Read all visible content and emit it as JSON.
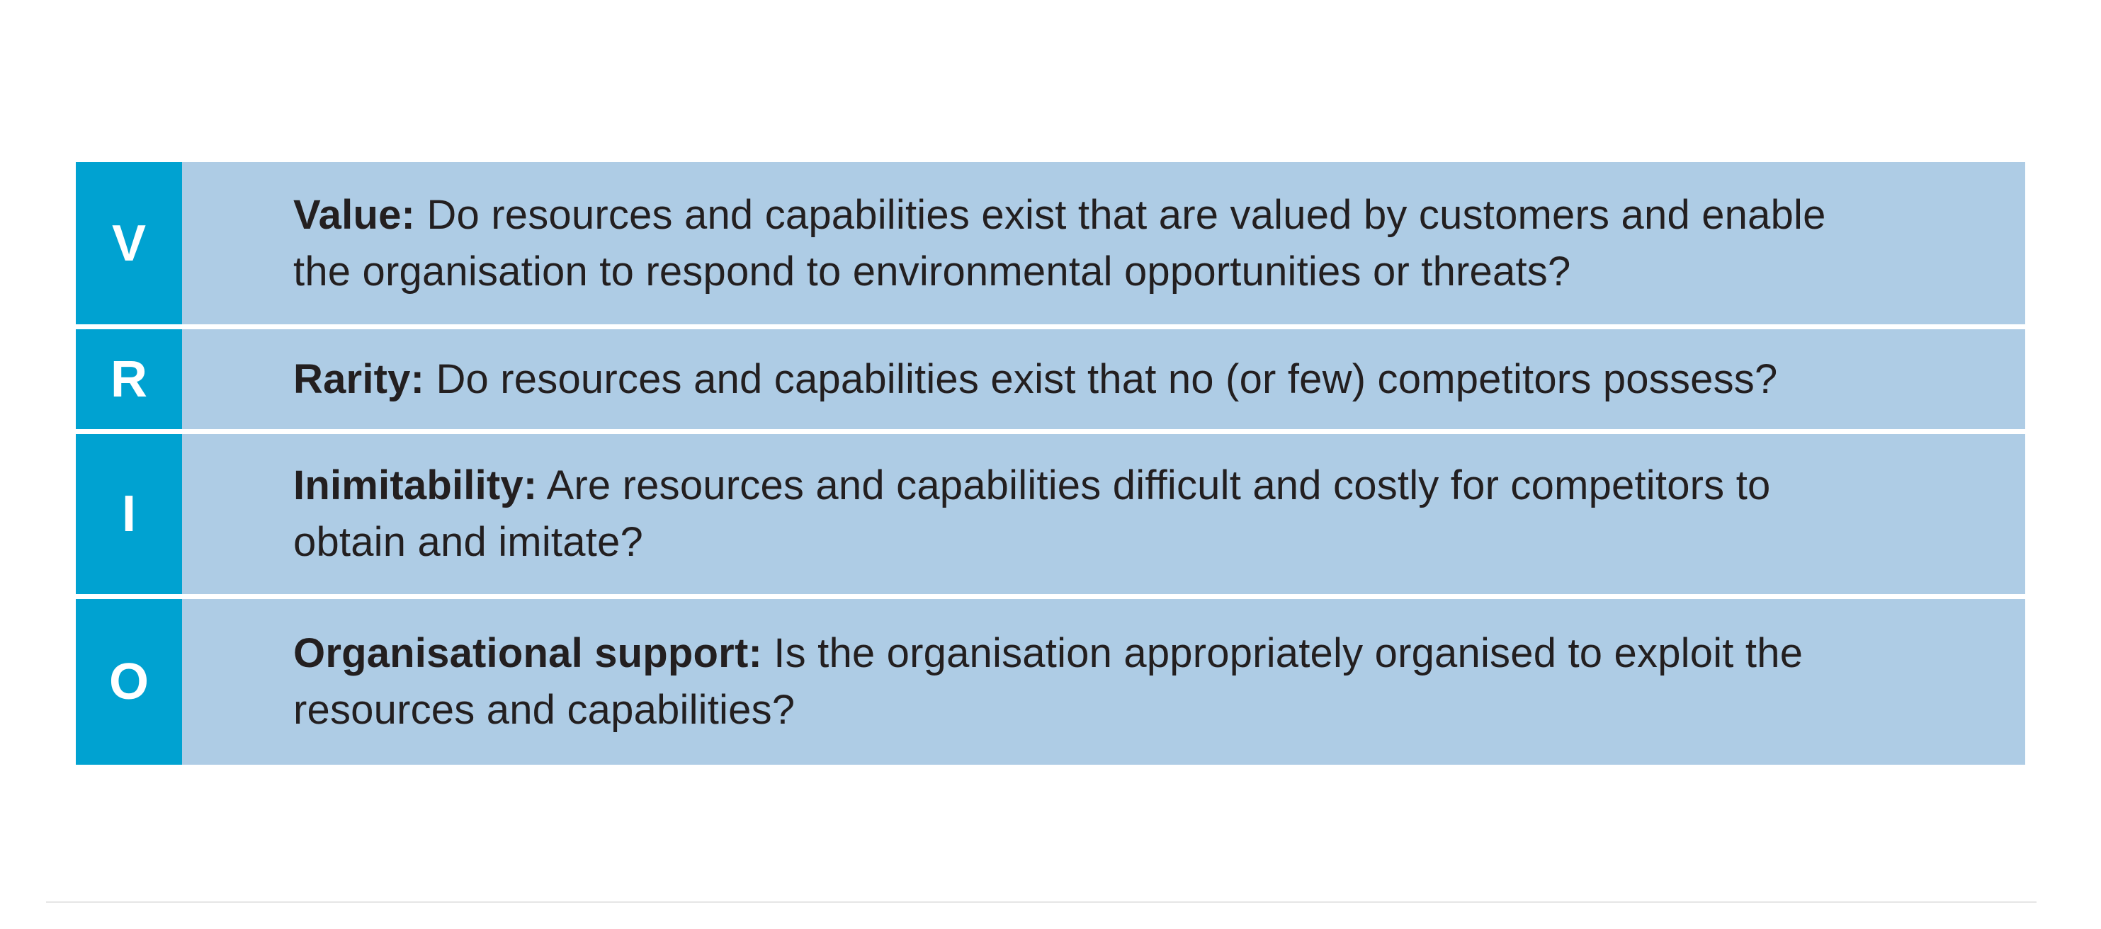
{
  "colors": {
    "letter_cell": "#00a2d1",
    "text_cell": "#aecce5",
    "text": "#231f20",
    "letter_text": "#ffffff",
    "row_divider": "#ffffff"
  },
  "vrio": {
    "rows": [
      {
        "letter": "V",
        "term": "Value:",
        "description": " Do resources and capabilities exist that are valued by customers and enable the organisation to respond to environmental opportunities or threats?"
      },
      {
        "letter": "R",
        "term": "Rarity:",
        "description": " Do resources and capabilities exist that no (or few) competitors possess?"
      },
      {
        "letter": "I",
        "term": "Inimitability:",
        "description": " Are resources and capabilities difficult and costly for competitors to obtain and imitate?"
      },
      {
        "letter": "O",
        "term": "Organisational support:",
        "description": " Is the organisation appropriately organised to exploit the resources and capabilities?"
      }
    ]
  }
}
